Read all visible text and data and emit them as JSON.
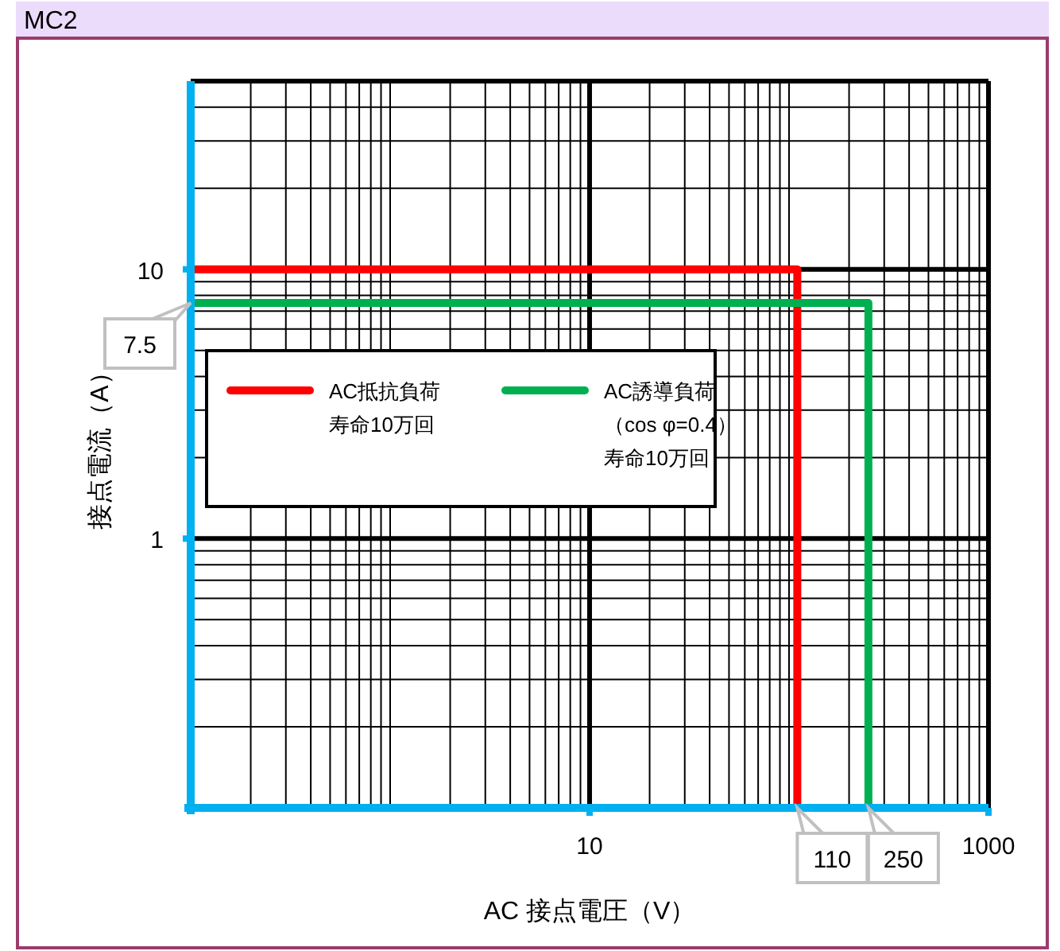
{
  "chart_data": {
    "type": "line",
    "title": "MC2",
    "xlabel": "AC 接点電圧（V）",
    "ylabel": "接点電流（A）",
    "log": "xy",
    "grid": true,
    "legend": "left",
    "xlim": [
      0.1,
      1000
    ],
    "ylim": [
      0.1,
      50
    ],
    "xticks": [
      10,
      1000
    ],
    "yticks": [
      1,
      10
    ],
    "series": [
      {
        "name": "AC抵抗負荷寿命10万回",
        "color": "#ff0000",
        "x": [
          0.1,
          110,
          110
        ],
        "values": [
          10,
          10,
          0.1
        ]
      },
      {
        "name": "AC誘導負荷（cos φ=0.4）寿命10万回",
        "color": "#00b050",
        "x": [
          0.1,
          250,
          250
        ],
        "values": [
          7.5,
          7.5,
          0.1
        ]
      }
    ],
    "annotations": [
      {
        "text": "7.5",
        "x": 0.1,
        "y": 7.5
      },
      {
        "text": "110",
        "x": 110,
        "y": 0.1
      },
      {
        "text": "250",
        "x": 250,
        "y": 0.1
      }
    ]
  }
}
